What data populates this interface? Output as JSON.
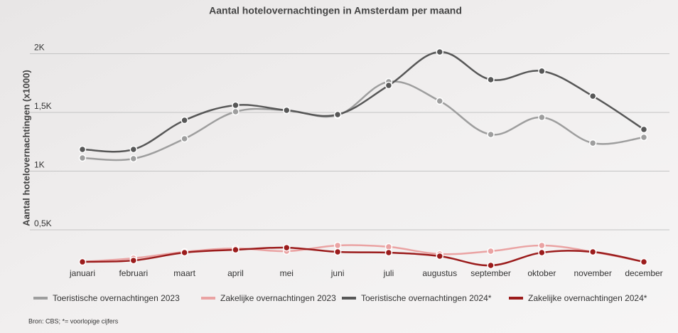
{
  "chart_data": {
    "type": "line",
    "title": "Aantal hotelovernachtingen in Amsterdam per maand",
    "y_label": "Aantal hotelovernachtingen (x1000)",
    "categories": [
      "januari",
      "februari",
      "maart",
      "april",
      "mei",
      "juni",
      "juli",
      "augustus",
      "september",
      "oktober",
      "november",
      "december"
    ],
    "series": [
      {
        "name": "Toeristische overnachtingen 2023",
        "color": "#9e9e9e",
        "values": [
          1112,
          1106,
          1276,
          1506,
          1518,
          1476,
          1761,
          1597,
          1312,
          1458,
          1239,
          1288
        ]
      },
      {
        "name": "Zakelijke overnachtingen 2023",
        "color": "#eaa3a3",
        "values": [
          227,
          258,
          312,
          342,
          318,
          367,
          355,
          294,
          318,
          367,
          312,
          227
        ]
      },
      {
        "name": "Toeristische overnachtingen 2024*",
        "color": "#575757",
        "values": [
          1185,
          1185,
          1433,
          1561,
          1518,
          1482,
          1730,
          2015,
          1779,
          1852,
          1639,
          1355
        ]
      },
      {
        "name": "Zakelijke overnachtingen 2024*",
        "color": "#9b1c1c",
        "values": [
          227,
          239,
          306,
          330,
          348,
          312,
          306,
          276,
          197,
          306,
          312,
          227
        ]
      }
    ],
    "ylim": [
      150,
      2100
    ],
    "yticks": [
      {
        "value": 500,
        "label": "0,5K"
      },
      {
        "value": 1000,
        "label": "1K"
      },
      {
        "value": 1500,
        "label": "1,5K"
      },
      {
        "value": 2000,
        "label": "2K"
      }
    ],
    "grid": true,
    "legend": "bottom",
    "source": "Bron: CBS;  *= voorlopige cijfers"
  }
}
